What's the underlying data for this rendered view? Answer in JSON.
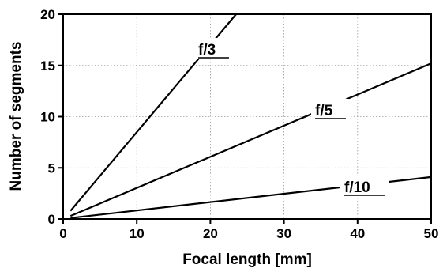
{
  "chart_data": {
    "type": "line",
    "title": "",
    "xlabel": "Focal length [mm]",
    "ylabel": "Number of segments",
    "xlim": [
      0,
      50
    ],
    "ylim": [
      0,
      20
    ],
    "xticks": [
      0,
      10,
      20,
      30,
      40,
      50
    ],
    "yticks": [
      0,
      5,
      10,
      15,
      20
    ],
    "grid": true,
    "series": [
      {
        "name": "f/3",
        "x": [
          1,
          23.5
        ],
        "y": [
          0.8,
          20
        ]
      },
      {
        "name": "f/5",
        "x": [
          1,
          50
        ],
        "y": [
          0.3,
          15.2
        ]
      },
      {
        "name": "f/10",
        "x": [
          1,
          50
        ],
        "y": [
          0.1,
          4.1
        ]
      }
    ]
  }
}
